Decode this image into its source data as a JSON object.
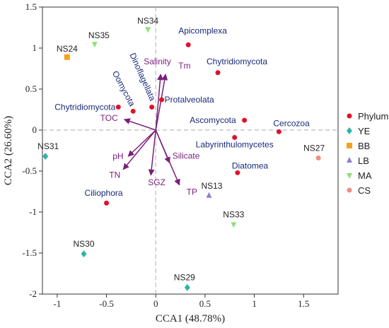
{
  "chart_data": {
    "type": "scatter",
    "xlabel": "CCA1 (48.78%)",
    "ylabel": "CCA2 (26.60%)",
    "xlim": [
      -1.15,
      1.85
    ],
    "ylim": [
      -2.0,
      1.5
    ],
    "xticks": [
      -1,
      -0.5,
      0,
      0.5,
      1,
      1.5
    ],
    "yticks": [
      -2,
      -1.5,
      -1,
      -0.5,
      0,
      0.5,
      1,
      1.5
    ],
    "xtick_labels": [
      "-1",
      "-0.5",
      "0",
      "0.5",
      "1",
      "1.5"
    ],
    "ytick_labels": [
      "-2",
      "-1.5",
      "-1",
      "-0.5",
      "0",
      "0.5",
      "1",
      "1.5"
    ],
    "grid": false,
    "reference_lines": {
      "x": 0,
      "y": 0,
      "style": "dashed"
    },
    "legend": {
      "placement": "right",
      "entries": [
        {
          "name": "Phylum",
          "marker": "circle",
          "color": "#e0122b"
        },
        {
          "name": "YE",
          "marker": "diamond",
          "color": "#2bb5a8"
        },
        {
          "name": "BB",
          "marker": "square",
          "color": "#f5a31a"
        },
        {
          "name": "LB",
          "marker": "triangle-up",
          "color": "#8e7fd6"
        },
        {
          "name": "MA",
          "marker": "triangle-down",
          "color": "#8ee07a"
        },
        {
          "name": "CS",
          "marker": "circle",
          "color": "#f28b82"
        }
      ]
    },
    "phyla": [
      {
        "label": "Apicomplexa",
        "x": 0.33,
        "y": 1.04
      },
      {
        "label": "Chytridiomycota",
        "x": 0.63,
        "y": 0.7
      },
      {
        "label": "Protalveolata",
        "x": 0.06,
        "y": 0.37
      },
      {
        "label": "Dinoflagellata",
        "x": -0.04,
        "y": 0.28
      },
      {
        "label": "Oomycota",
        "x": -0.23,
        "y": 0.23
      },
      {
        "label": "Chytridiomycota",
        "x": -0.38,
        "y": 0.28
      },
      {
        "label": "Ascomycota",
        "x": 0.9,
        "y": 0.12
      },
      {
        "label": "Cercozoa",
        "x": 1.25,
        "y": -0.02
      },
      {
        "label": "Labyrinthulomycetes",
        "x": 0.8,
        "y": -0.09
      },
      {
        "label": "Diatomea",
        "x": 0.83,
        "y": -0.52
      },
      {
        "label": "Ciliophora",
        "x": -0.5,
        "y": -0.89
      }
    ],
    "sites": [
      {
        "label": "NS34",
        "group": "MA",
        "x": -0.08,
        "y": 1.23
      },
      {
        "label": "NS35",
        "group": "MA",
        "x": -0.62,
        "y": 1.05
      },
      {
        "label": "NS24",
        "group": "BB",
        "x": -0.9,
        "y": 0.89
      },
      {
        "label": "NS31",
        "group": "YE",
        "x": -1.12,
        "y": -0.32
      },
      {
        "label": "NS27",
        "group": "CS",
        "x": 1.65,
        "y": -0.34
      },
      {
        "label": "NS13",
        "group": "LB",
        "x": 0.54,
        "y": -0.8
      },
      {
        "label": "NS33",
        "group": "MA",
        "x": 0.79,
        "y": -1.15
      },
      {
        "label": "NS30",
        "group": "YE",
        "x": -0.73,
        "y": -1.51
      },
      {
        "label": "NS29",
        "group": "YE",
        "x": 0.32,
        "y": -1.92
      }
    ],
    "env_vectors": [
      {
        "label": "Salinity",
        "x": 0.05,
        "y": 0.68
      },
      {
        "label": "Tm",
        "x": 0.1,
        "y": 0.68
      },
      {
        "label": "TOC",
        "x": -0.32,
        "y": 0.13
      },
      {
        "label": "pH",
        "x": -0.28,
        "y": -0.32
      },
      {
        "label": "TN",
        "x": -0.33,
        "y": -0.48
      },
      {
        "label": "SGZ",
        "x": -0.05,
        "y": -0.55
      },
      {
        "label": "Silicate",
        "x": 0.14,
        "y": -0.4
      },
      {
        "label": "TP",
        "x": 0.24,
        "y": -0.67
      }
    ]
  }
}
